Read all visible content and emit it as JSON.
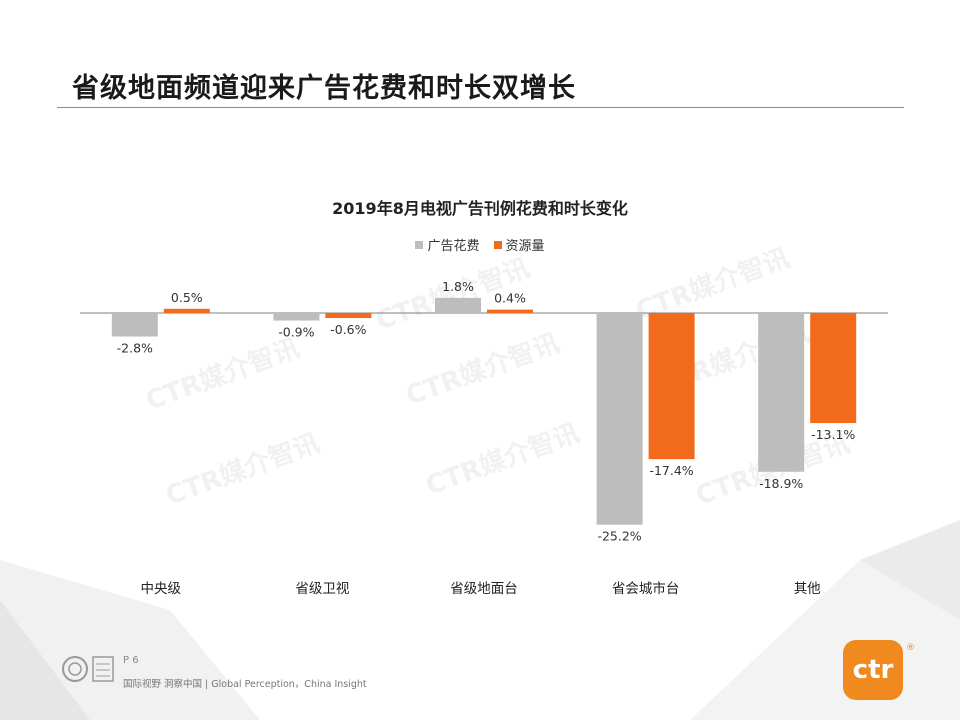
{
  "page": {
    "title": "省级地面频道迎来广告花费和时长双增长",
    "page_number": "P 6",
    "tagline": "国际视野 洞察中国 | Global Perception，China Insight",
    "logo_text": "ctr",
    "logo_mark": "®",
    "watermark_text": "CTR媒介智讯"
  },
  "colors": {
    "spend": "#bdbdbd",
    "volume": "#f26a1b",
    "logo": "#f08a1e"
  },
  "chart_data": {
    "type": "bar",
    "title": "2019年8月电视广告刊例花费和时长变化",
    "categories": [
      "中央级",
      "省级卫视",
      "省级地面台",
      "省会城市台",
      "其他"
    ],
    "series": [
      {
        "name": "广告花费",
        "values": [
          -2.8,
          -0.9,
          1.8,
          -25.2,
          -18.9
        ],
        "labels": [
          "-2.8%",
          "-0.9%",
          "1.8%",
          "-25.2%",
          "-18.9%"
        ]
      },
      {
        "name": "资源量",
        "values": [
          0.5,
          -0.6,
          0.4,
          -17.4,
          -13.1
        ],
        "labels": [
          "0.5%",
          "-0.6%",
          "0.4%",
          "-17.4%",
          "-13.1%"
        ]
      }
    ],
    "unit": "%",
    "ylim": [
      -26,
      2
    ],
    "legend_position": "top-center",
    "grid": false
  }
}
